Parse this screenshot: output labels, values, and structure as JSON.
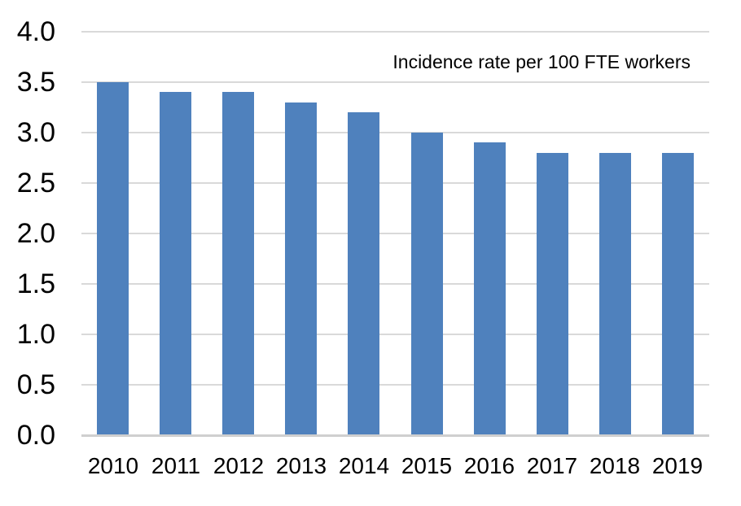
{
  "chart_data": {
    "type": "bar",
    "title": "",
    "annotation": "Incidence rate per 100 FTE workers",
    "categories": [
      "2010",
      "2011",
      "2012",
      "2013",
      "2014",
      "2015",
      "2016",
      "2017",
      "2018",
      "2019"
    ],
    "values": [
      3.5,
      3.4,
      3.4,
      3.3,
      3.2,
      3.0,
      2.9,
      2.8,
      2.8,
      2.8
    ],
    "xlabel": "",
    "ylabel": "",
    "ylim": [
      0,
      4.0
    ],
    "ytick_step": 0.5,
    "ytick_labels": [
      "0.0",
      "0.5",
      "1.0",
      "1.5",
      "2.0",
      "2.5",
      "3.0",
      "3.5",
      "4.0"
    ],
    "grid": true,
    "legend": false,
    "colors": {
      "bar": "#4F81BD",
      "gridline": "#D9D9D9",
      "axis_line": "#CFCFCF",
      "text": "#000000",
      "background": "#FFFFFF"
    }
  }
}
